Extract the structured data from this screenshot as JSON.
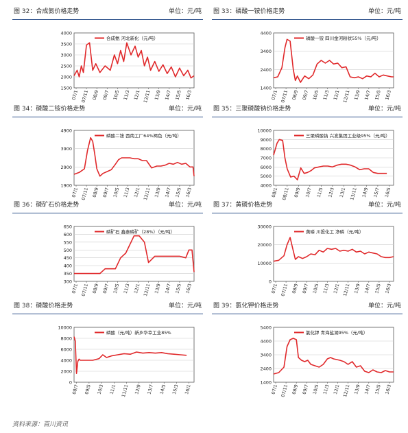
{
  "panels": [
    {
      "header_title": "图 32：合成氨价格走势",
      "header_unit": "单位：元/吨",
      "chart_data": {
        "type": "line",
        "legend": "合成氨 河北新化（元/吨）",
        "color": "#e0282a",
        "ylim": [
          1500,
          4000
        ],
        "yticks": [
          1500,
          2000,
          2500,
          3000,
          3500,
          4000
        ],
        "xticks": [
          "07/1",
          "07/11",
          "08/9",
          "09/7",
          "10/5",
          "11/3",
          "12/1",
          "12/11",
          "13/9",
          "14/7",
          "15/5",
          "16/3"
        ],
        "x": [
          0,
          0.3,
          0.5,
          0.7,
          0.9,
          1.2,
          1.5,
          1.8,
          2.1,
          2.5,
          3,
          3.5,
          3.9,
          4.2,
          4.5,
          4.8,
          5.1,
          5.5,
          5.9,
          6.2,
          6.5,
          6.8,
          7.1,
          7.4,
          7.8,
          8.2,
          8.6,
          9,
          9.4,
          9.8,
          10.2,
          10.6,
          11,
          11.3,
          11.6
        ],
        "values": [
          2050,
          2300,
          2000,
          2500,
          2200,
          3450,
          3550,
          2300,
          2600,
          2200,
          2500,
          2300,
          3000,
          2600,
          3200,
          2700,
          3550,
          3000,
          3400,
          2900,
          3200,
          2500,
          2900,
          2300,
          2700,
          2250,
          2550,
          2150,
          2450,
          2000,
          2400,
          2050,
          2300,
          1950,
          2050
        ]
      }
    },
    {
      "header_title": "图 33：磷酸一铵价格走势",
      "header_unit": "单位：元/吨",
      "chart_data": {
        "type": "line",
        "legend": "磷酸一铵 四川金河粉状55%（元/吨）",
        "color": "#e0282a",
        "ylim": [
          1400,
          4400
        ],
        "yticks": [
          1400,
          2400,
          3400,
          4400
        ],
        "xticks": [
          "07/1",
          "07/11",
          "08/9",
          "09/7",
          "10/5",
          "11/3",
          "12/1",
          "12/11",
          "13/9",
          "14/7",
          "15/5",
          "16/3"
        ],
        "x": [
          0,
          0.4,
          0.8,
          1.1,
          1.3,
          1.6,
          1.9,
          2.1,
          2.3,
          2.6,
          3,
          3.4,
          3.8,
          4.2,
          4.6,
          5,
          5.4,
          5.8,
          6.2,
          6.6,
          7,
          7.4,
          7.8,
          8.2,
          8.6,
          9,
          9.4,
          9.8,
          10.2,
          10.6,
          11,
          11.4,
          11.6
        ],
        "values": [
          1950,
          2000,
          2500,
          3600,
          4050,
          3950,
          2400,
          1800,
          2050,
          1700,
          2050,
          1900,
          2100,
          2700,
          2900,
          2750,
          2900,
          2700,
          2750,
          2500,
          2550,
          2000,
          1950,
          2000,
          1900,
          2050,
          2000,
          2200,
          2000,
          2100,
          2050,
          2000,
          2000
        ]
      }
    },
    {
      "header_title": "图 34：磷酸二铵价格走势",
      "header_unit": "单位：元/吨",
      "chart_data": {
        "type": "line",
        "legend": "磷酸二铵 西南工厂64%褐色（元/吨）",
        "color": "#e0282a",
        "ylim": [
          1900,
          4900
        ],
        "yticks": [
          1900,
          2900,
          3900,
          4900
        ],
        "xticks": [
          "07/1",
          "07/11",
          "08/9",
          "09/7",
          "10/5",
          "11/3",
          "12/1",
          "12/11",
          "13/9",
          "14/7",
          "15/5",
          "16/3"
        ],
        "x": [
          0,
          0.5,
          1,
          1.3,
          1.6,
          1.8,
          2,
          2.2,
          2.5,
          2.8,
          3.2,
          3.6,
          4,
          4.3,
          4.6,
          5,
          5.4,
          5.8,
          6.2,
          6.6,
          7,
          7.5,
          8,
          8.4,
          8.8,
          9.2,
          9.6,
          10,
          10.4,
          10.8,
          11.2,
          11.5,
          11.6
        ],
        "values": [
          2500,
          2600,
          2800,
          3800,
          4500,
          4300,
          3600,
          2800,
          2400,
          2550,
          2650,
          2750,
          3050,
          3300,
          3400,
          3400,
          3400,
          3350,
          3350,
          3250,
          3250,
          2850,
          2950,
          2950,
          3000,
          3100,
          3050,
          3150,
          3050,
          3100,
          2900,
          2900,
          2400
        ]
      }
    },
    {
      "header_title": "图 35：三聚磷酸钠价格走势",
      "header_unit": "单位：元/吨",
      "chart_data": {
        "type": "line",
        "legend": "三聚磷酸钠 兴发集团工业级95%（元/吨）",
        "color": "#e0282a",
        "ylim": [
          4000,
          10000
        ],
        "yticks": [
          4000,
          5000,
          6000,
          7000,
          8000,
          9000,
          10000
        ],
        "xticks": [
          "08/1",
          "08/11",
          "09/9",
          "10/7",
          "11/5",
          "12/3",
          "13/1",
          "13/11",
          "14/9",
          "15/7",
          "16/5"
        ],
        "x": [
          0,
          0.3,
          0.5,
          0.8,
          1,
          1.2,
          1.5,
          1.8,
          2.1,
          2.4,
          2.7,
          3,
          3.3,
          3.6,
          4,
          4.4,
          4.8,
          5.2,
          5.6,
          6,
          6.4,
          6.8,
          7.2,
          7.6,
          8,
          8.4,
          8.8,
          9.2,
          9.6,
          10
        ],
        "values": [
          7300,
          8600,
          9000,
          8900,
          7000,
          5800,
          4900,
          5000,
          4600,
          5900,
          5300,
          5400,
          5600,
          5900,
          6000,
          6100,
          6100,
          6000,
          6200,
          6300,
          6300,
          6200,
          6000,
          5700,
          5800,
          5800,
          5400,
          5300,
          5300,
          5300
        ]
      }
    },
    {
      "header_title": "图 36：磷矿石价格走势",
      "header_unit": "单位：元/吨",
      "chart_data": {
        "type": "line",
        "legend": "磷矿石 鑫泰磷矿（28%）（元/吨）",
        "color": "#e0282a",
        "ylim": [
          300,
          650
        ],
        "yticks": [
          300,
          350,
          400,
          450,
          500,
          550,
          600,
          650
        ],
        "xticks": [
          "07/1",
          "07/11",
          "08/9",
          "09/7",
          "10/5",
          "11/3",
          "12/1",
          "12/11",
          "13/9",
          "14/7",
          "15/5",
          "16/3"
        ],
        "x": [
          0,
          1,
          2,
          2.5,
          3,
          4,
          4.5,
          5,
          5.8,
          6.3,
          6.8,
          7.2,
          7.8,
          8.5,
          9,
          9.6,
          10.2,
          10.8,
          11.1,
          11.4,
          11.6
        ],
        "values": [
          350,
          350,
          350,
          350,
          380,
          380,
          450,
          480,
          590,
          590,
          550,
          420,
          460,
          460,
          460,
          460,
          460,
          450,
          500,
          500,
          360
        ]
      }
    },
    {
      "header_title": "图 37：黄磷价格走势",
      "header_unit": "单位：元/吨",
      "chart_data": {
        "type": "line",
        "legend": "黄磷 川投化工 净磷（元/吨）",
        "color": "#e0282a",
        "ylim": [
          0,
          30000
        ],
        "yticks": [
          0,
          10000,
          20000,
          30000
        ],
        "xticks": [
          "07/1",
          "07/11",
          "08/9",
          "09/7",
          "10/5",
          "11/3",
          "12/1",
          "12/11",
          "13/9",
          "14/7",
          "15/5",
          "16/3"
        ],
        "x": [
          0,
          0.5,
          1,
          1.3,
          1.6,
          1.8,
          2.1,
          2.4,
          2.8,
          3.2,
          3.6,
          4,
          4.4,
          4.8,
          5.2,
          5.6,
          6,
          6.4,
          6.8,
          7.2,
          7.6,
          8,
          8.4,
          8.8,
          9.2,
          9.6,
          10,
          10.4,
          10.8,
          11.2,
          11.6
        ],
        "values": [
          11000,
          11500,
          14000,
          20000,
          24000,
          19000,
          12000,
          13500,
          12500,
          13500,
          15000,
          14500,
          17000,
          16000,
          18000,
          17500,
          18000,
          16500,
          17000,
          16500,
          17500,
          16000,
          16500,
          15000,
          16000,
          15500,
          15000,
          13500,
          13000,
          13000,
          13500
        ]
      }
    },
    {
      "header_title": "图 38：磷酸价格走势",
      "header_unit": "单位：元/吨",
      "chart_data": {
        "type": "line",
        "legend": "磷酸（元/吨）新乡华幸工业85%",
        "color": "#e0282a",
        "ylim": [
          0,
          10000
        ],
        "yticks": [
          0,
          2000,
          4000,
          6000,
          8000,
          10000
        ],
        "xticks": [
          "08/7",
          "09/5",
          "10/3",
          "11/1",
          "11/11",
          "12/9",
          "13/7",
          "14/5",
          "15/3",
          "16/1"
        ],
        "x": [
          0,
          0.1,
          0.2,
          0.3,
          0.4,
          0.5,
          1,
          1.5,
          2,
          2.3,
          2.6,
          3,
          3.5,
          4,
          4.5,
          5,
          5.5,
          6,
          6.5,
          7,
          7.5,
          8,
          8.5,
          9
        ],
        "values": [
          8300,
          7500,
          1600,
          3800,
          4200,
          4000,
          4000,
          4000,
          4300,
          5000,
          4500,
          4800,
          5000,
          5200,
          5100,
          5500,
          5300,
          5400,
          5300,
          5400,
          5200,
          5100,
          5000,
          4900
        ]
      }
    },
    {
      "header_title": "图 39：氯化钾价格走势",
      "header_unit": "单位：元/吨",
      "chart_data": {
        "type": "line",
        "legend": "氯化钾 青海盐湖95%（元/吨）",
        "color": "#e0282a",
        "ylim": [
          1400,
          5400
        ],
        "yticks": [
          1400,
          2400,
          3400,
          4400,
          5400
        ],
        "xticks": [
          "07/1",
          "07/11",
          "08/9",
          "09/7",
          "10/5",
          "11/3",
          "12/1",
          "12/11",
          "13/9",
          "14/7",
          "15/5",
          "16/3"
        ],
        "x": [
          0,
          0.5,
          1,
          1.3,
          1.6,
          1.9,
          2.2,
          2.4,
          2.7,
          3,
          3.3,
          3.6,
          4,
          4.4,
          4.8,
          5.2,
          5.5,
          5.8,
          6.1,
          6.4,
          6.8,
          7.2,
          7.6,
          8,
          8.4,
          8.8,
          9.2,
          9.6,
          10,
          10.4,
          10.8,
          11.2,
          11.6
        ],
        "values": [
          2000,
          2100,
          2500,
          4000,
          4500,
          4600,
          4500,
          3200,
          3000,
          2900,
          3000,
          2700,
          2600,
          2500,
          2700,
          3100,
          3200,
          3100,
          3050,
          3000,
          2900,
          2700,
          2900,
          2500,
          2600,
          2200,
          2100,
          2300,
          2150,
          2100,
          2250,
          2150,
          2150
        ]
      }
    }
  ],
  "source_note": "资料来源：百川资讯"
}
